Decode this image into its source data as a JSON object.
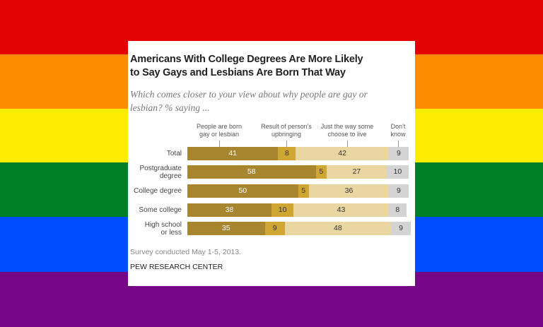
{
  "chart_data": {
    "type": "bar",
    "orientation": "horizontal",
    "stacked": true,
    "title": "Americans With College Degrees Are More Likely\nto Say Gays and Lesbians Are Born That Way",
    "subtitle": "Which comes closer to your view about why people are gay or\nlesbian? % saying ...",
    "categories": [
      "Total",
      "Postgraduate\ndegree",
      "College degree",
      "Some college",
      "High school\nor less"
    ],
    "series": [
      {
        "name": "People are born\ngay or lesbian",
        "color": "#a8852f",
        "values": [
          41,
          58,
          50,
          38,
          35
        ]
      },
      {
        "name": "Result of person's\nupbringing",
        "color": "#cfa534",
        "values": [
          8,
          5,
          5,
          10,
          9
        ]
      },
      {
        "name": "Just the way some\nchoose to live",
        "color": "#ead6a0",
        "values": [
          42,
          27,
          36,
          43,
          48
        ]
      },
      {
        "name": "Don't\nknow",
        "color": "#d4d4d4",
        "values": [
          9,
          10,
          9,
          8,
          9
        ]
      }
    ],
    "note": "Survey conducted May 1-5, 2013.",
    "source": "PEW RESEARCH CENTER"
  }
}
